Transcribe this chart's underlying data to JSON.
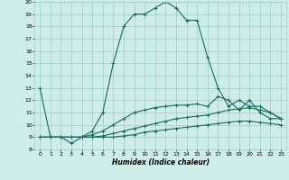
{
  "title": "",
  "xlabel": "Humidex (Indice chaleur)",
  "ylabel": "",
  "xlim": [
    -0.5,
    23.5
  ],
  "ylim": [
    8,
    20
  ],
  "xticks": [
    0,
    1,
    2,
    3,
    4,
    5,
    6,
    7,
    8,
    9,
    10,
    11,
    12,
    13,
    14,
    15,
    16,
    17,
    18,
    19,
    20,
    21,
    22,
    23
  ],
  "yticks": [
    8,
    9,
    10,
    11,
    12,
    13,
    14,
    15,
    16,
    17,
    18,
    19,
    20
  ],
  "bg_color": "#cdecea",
  "line_color": "#1a6b5e",
  "grid_color": "#a0ccc8",
  "line1_x": [
    0,
    1,
    2,
    3,
    4,
    5,
    6,
    7,
    8,
    9,
    10,
    11,
    12,
    13,
    14,
    15,
    16,
    17,
    18,
    19,
    20,
    21,
    22,
    23
  ],
  "line1_y": [
    13,
    9,
    9,
    8.5,
    9,
    9.5,
    11,
    15,
    18,
    19,
    19,
    19.5,
    20,
    19.5,
    18.5,
    18.5,
    15.5,
    13,
    11.5,
    12,
    11.5,
    11.5,
    11,
    10.5
  ],
  "line2_x": [
    0,
    1,
    2,
    3,
    4,
    5,
    6,
    7,
    8,
    9,
    10,
    11,
    12,
    13,
    14,
    15,
    16,
    17,
    18,
    19,
    20,
    21,
    22,
    23
  ],
  "line2_y": [
    9,
    9,
    9,
    9,
    9,
    9.2,
    9.5,
    10,
    10.5,
    11,
    11.2,
    11.4,
    11.5,
    11.6,
    11.6,
    11.7,
    11.5,
    12.3,
    12,
    11.2,
    12,
    11,
    10.5,
    10.5
  ],
  "line3_x": [
    0,
    1,
    2,
    3,
    4,
    5,
    6,
    7,
    8,
    9,
    10,
    11,
    12,
    13,
    14,
    15,
    16,
    17,
    18,
    19,
    20,
    21,
    22,
    23
  ],
  "line3_y": [
    9,
    9,
    9,
    9,
    9,
    9,
    9.1,
    9.3,
    9.5,
    9.7,
    9.9,
    10.1,
    10.3,
    10.5,
    10.6,
    10.7,
    10.8,
    11.0,
    11.2,
    11.3,
    11.4,
    11.2,
    11.0,
    10.5
  ],
  "line4_x": [
    0,
    1,
    2,
    3,
    4,
    5,
    6,
    7,
    8,
    9,
    10,
    11,
    12,
    13,
    14,
    15,
    16,
    17,
    18,
    19,
    20,
    21,
    22,
    23
  ],
  "line4_y": [
    9,
    9,
    9,
    9,
    9,
    9,
    9,
    9,
    9.1,
    9.2,
    9.4,
    9.5,
    9.6,
    9.7,
    9.8,
    9.9,
    10.0,
    10.1,
    10.2,
    10.3,
    10.3,
    10.2,
    10.1,
    10.0
  ]
}
